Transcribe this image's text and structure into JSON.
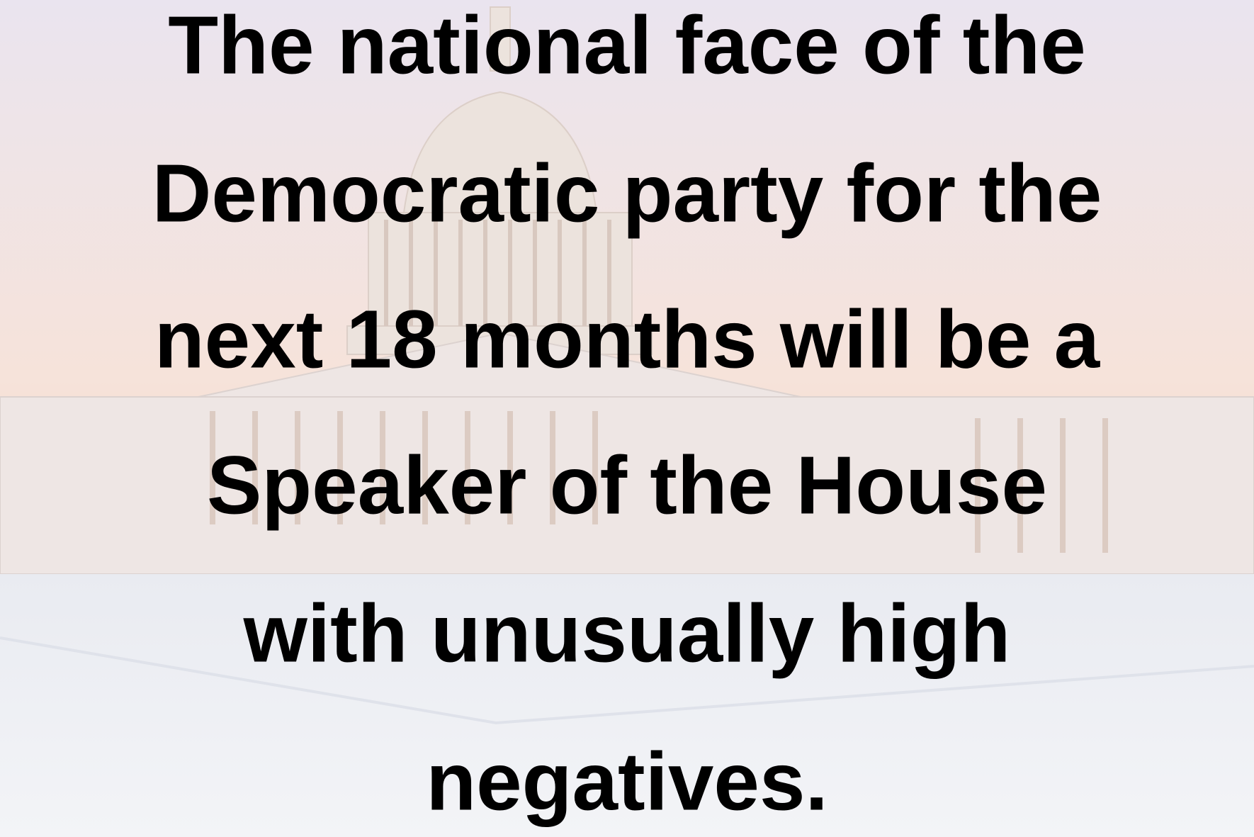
{
  "slide": {
    "text_lines": [
      "The national face of the",
      "Democratic party for the",
      "next 18 months will be a",
      "Speaker of the House",
      "with unusually high",
      "negatives."
    ]
  }
}
